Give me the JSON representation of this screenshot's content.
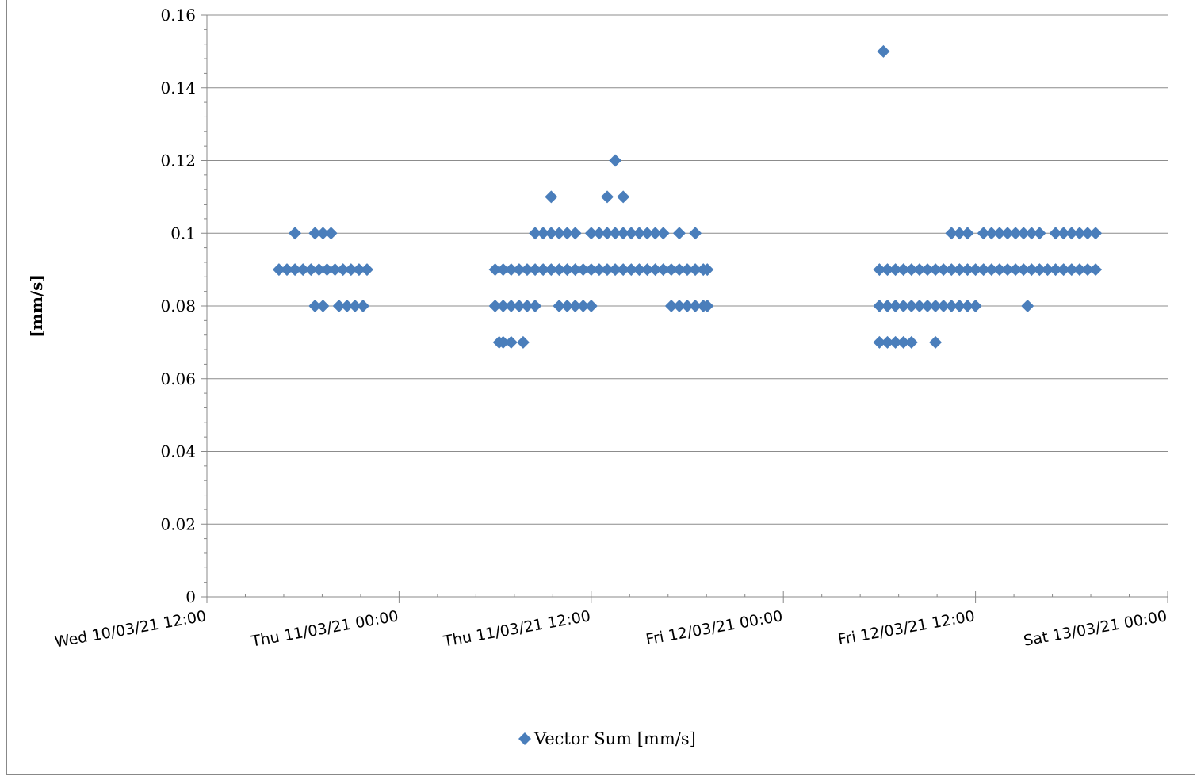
{
  "chart_data": {
    "type": "scatter",
    "title": "",
    "xlabel": "",
    "ylabel": "[mm/s]",
    "ylim": [
      0,
      0.16
    ],
    "yticks": [
      "0",
      "0.02",
      "0.04",
      "0.06",
      "0.08",
      "0.1",
      "0.12",
      "0.14",
      "0.16"
    ],
    "xlim": [
      "2021-03-10 12:00",
      "2021-03-13 00:00"
    ],
    "xticks": [
      "Wed 10/03/21 12:00",
      "Thu 11/03/21 00:00",
      "Thu 11/03/21 12:00",
      "Fri 12/03/21 00:00",
      "Fri 12/03/21 12:00",
      "Sat 13/03/21 00:00"
    ],
    "grid": "horizontal major gridlines",
    "legend_position": "bottom-center",
    "marker": "diamond",
    "color": "#4a7ebb",
    "series": [
      {
        "name": "Vector Sum [mm/s]",
        "points": [
          [
            "2021-03-10 16:30",
            0.09
          ],
          [
            "2021-03-10 17:00",
            0.09
          ],
          [
            "2021-03-10 17:30",
            0.09
          ],
          [
            "2021-03-10 18:00",
            0.09
          ],
          [
            "2021-03-10 18:30",
            0.09
          ],
          [
            "2021-03-10 19:00",
            0.09
          ],
          [
            "2021-03-10 19:30",
            0.09
          ],
          [
            "2021-03-10 20:00",
            0.09
          ],
          [
            "2021-03-10 20:30",
            0.09
          ],
          [
            "2021-03-10 21:00",
            0.09
          ],
          [
            "2021-03-10 21:30",
            0.09
          ],
          [
            "2021-03-10 22:00",
            0.09
          ],
          [
            "2021-03-10 17:30",
            0.1
          ],
          [
            "2021-03-10 18:45",
            0.1
          ],
          [
            "2021-03-10 19:15",
            0.1
          ],
          [
            "2021-03-10 19:45",
            0.1
          ],
          [
            "2021-03-10 18:45",
            0.08
          ],
          [
            "2021-03-10 19:15",
            0.08
          ],
          [
            "2021-03-10 20:15",
            0.08
          ],
          [
            "2021-03-10 20:45",
            0.08
          ],
          [
            "2021-03-10 21:15",
            0.08
          ],
          [
            "2021-03-10 21:45",
            0.08
          ],
          [
            "2021-03-11 06:00",
            0.09
          ],
          [
            "2021-03-11 06:30",
            0.09
          ],
          [
            "2021-03-11 07:00",
            0.09
          ],
          [
            "2021-03-11 07:30",
            0.09
          ],
          [
            "2021-03-11 08:00",
            0.09
          ],
          [
            "2021-03-11 08:30",
            0.09
          ],
          [
            "2021-03-11 09:00",
            0.09
          ],
          [
            "2021-03-11 09:30",
            0.09
          ],
          [
            "2021-03-11 10:00",
            0.09
          ],
          [
            "2021-03-11 10:30",
            0.09
          ],
          [
            "2021-03-11 11:00",
            0.09
          ],
          [
            "2021-03-11 11:30",
            0.09
          ],
          [
            "2021-03-11 12:00",
            0.09
          ],
          [
            "2021-03-11 12:30",
            0.09
          ],
          [
            "2021-03-11 13:00",
            0.09
          ],
          [
            "2021-03-11 13:30",
            0.09
          ],
          [
            "2021-03-11 14:00",
            0.09
          ],
          [
            "2021-03-11 14:30",
            0.09
          ],
          [
            "2021-03-11 15:00",
            0.09
          ],
          [
            "2021-03-11 15:30",
            0.09
          ],
          [
            "2021-03-11 16:00",
            0.09
          ],
          [
            "2021-03-11 16:30",
            0.09
          ],
          [
            "2021-03-11 17:00",
            0.09
          ],
          [
            "2021-03-11 17:30",
            0.09
          ],
          [
            "2021-03-11 18:00",
            0.09
          ],
          [
            "2021-03-11 18:30",
            0.09
          ],
          [
            "2021-03-11 19:00",
            0.09
          ],
          [
            "2021-03-11 19:15",
            0.09
          ],
          [
            "2021-03-11 08:30",
            0.1
          ],
          [
            "2021-03-11 09:00",
            0.1
          ],
          [
            "2021-03-11 09:30",
            0.1
          ],
          [
            "2021-03-11 10:00",
            0.1
          ],
          [
            "2021-03-11 10:30",
            0.1
          ],
          [
            "2021-03-11 11:00",
            0.1
          ],
          [
            "2021-03-11 12:00",
            0.1
          ],
          [
            "2021-03-11 12:30",
            0.1
          ],
          [
            "2021-03-11 13:00",
            0.1
          ],
          [
            "2021-03-11 13:30",
            0.1
          ],
          [
            "2021-03-11 14:00",
            0.1
          ],
          [
            "2021-03-11 14:30",
            0.1
          ],
          [
            "2021-03-11 15:00",
            0.1
          ],
          [
            "2021-03-11 15:30",
            0.1
          ],
          [
            "2021-03-11 16:00",
            0.1
          ],
          [
            "2021-03-11 16:30",
            0.1
          ],
          [
            "2021-03-11 17:30",
            0.1
          ],
          [
            "2021-03-11 18:30",
            0.1
          ],
          [
            "2021-03-11 06:00",
            0.08
          ],
          [
            "2021-03-11 06:30",
            0.08
          ],
          [
            "2021-03-11 07:00",
            0.08
          ],
          [
            "2021-03-11 07:30",
            0.08
          ],
          [
            "2021-03-11 08:00",
            0.08
          ],
          [
            "2021-03-11 08:30",
            0.08
          ],
          [
            "2021-03-11 10:00",
            0.08
          ],
          [
            "2021-03-11 10:30",
            0.08
          ],
          [
            "2021-03-11 11:00",
            0.08
          ],
          [
            "2021-03-11 11:30",
            0.08
          ],
          [
            "2021-03-11 12:00",
            0.08
          ],
          [
            "2021-03-11 17:00",
            0.08
          ],
          [
            "2021-03-11 17:30",
            0.08
          ],
          [
            "2021-03-11 18:00",
            0.08
          ],
          [
            "2021-03-11 18:30",
            0.08
          ],
          [
            "2021-03-11 19:00",
            0.08
          ],
          [
            "2021-03-11 19:15",
            0.08
          ],
          [
            "2021-03-11 06:15",
            0.07
          ],
          [
            "2021-03-11 06:30",
            0.07
          ],
          [
            "2021-03-11 07:00",
            0.07
          ],
          [
            "2021-03-11 07:45",
            0.07
          ],
          [
            "2021-03-11 09:30",
            0.11
          ],
          [
            "2021-03-11 13:00",
            0.11
          ],
          [
            "2021-03-11 13:30",
            0.12
          ],
          [
            "2021-03-11 14:00",
            0.11
          ],
          [
            "2021-03-12 06:00",
            0.09
          ],
          [
            "2021-03-12 06:30",
            0.09
          ],
          [
            "2021-03-12 07:00",
            0.09
          ],
          [
            "2021-03-12 07:30",
            0.09
          ],
          [
            "2021-03-12 08:00",
            0.09
          ],
          [
            "2021-03-12 08:30",
            0.09
          ],
          [
            "2021-03-12 09:00",
            0.09
          ],
          [
            "2021-03-12 09:30",
            0.09
          ],
          [
            "2021-03-12 10:00",
            0.09
          ],
          [
            "2021-03-12 10:30",
            0.09
          ],
          [
            "2021-03-12 11:00",
            0.09
          ],
          [
            "2021-03-12 11:30",
            0.09
          ],
          [
            "2021-03-12 12:00",
            0.09
          ],
          [
            "2021-03-12 12:30",
            0.09
          ],
          [
            "2021-03-12 13:00",
            0.09
          ],
          [
            "2021-03-12 13:30",
            0.09
          ],
          [
            "2021-03-12 14:00",
            0.09
          ],
          [
            "2021-03-12 14:30",
            0.09
          ],
          [
            "2021-03-12 15:00",
            0.09
          ],
          [
            "2021-03-12 15:30",
            0.09
          ],
          [
            "2021-03-12 16:00",
            0.09
          ],
          [
            "2021-03-12 16:30",
            0.09
          ],
          [
            "2021-03-12 17:00",
            0.09
          ],
          [
            "2021-03-12 17:30",
            0.09
          ],
          [
            "2021-03-12 18:00",
            0.09
          ],
          [
            "2021-03-12 18:30",
            0.09
          ],
          [
            "2021-03-12 19:00",
            0.09
          ],
          [
            "2021-03-12 19:30",
            0.09
          ],
          [
            "2021-03-12 10:30",
            0.1
          ],
          [
            "2021-03-12 11:00",
            0.1
          ],
          [
            "2021-03-12 11:30",
            0.1
          ],
          [
            "2021-03-12 12:30",
            0.1
          ],
          [
            "2021-03-12 13:00",
            0.1
          ],
          [
            "2021-03-12 13:30",
            0.1
          ],
          [
            "2021-03-12 14:00",
            0.1
          ],
          [
            "2021-03-12 14:30",
            0.1
          ],
          [
            "2021-03-12 15:00",
            0.1
          ],
          [
            "2021-03-12 15:30",
            0.1
          ],
          [
            "2021-03-12 16:00",
            0.1
          ],
          [
            "2021-03-12 17:00",
            0.1
          ],
          [
            "2021-03-12 17:30",
            0.1
          ],
          [
            "2021-03-12 18:00",
            0.1
          ],
          [
            "2021-03-12 18:30",
            0.1
          ],
          [
            "2021-03-12 19:00",
            0.1
          ],
          [
            "2021-03-12 19:30",
            0.1
          ],
          [
            "2021-03-12 06:00",
            0.08
          ],
          [
            "2021-03-12 06:30",
            0.08
          ],
          [
            "2021-03-12 07:00",
            0.08
          ],
          [
            "2021-03-12 07:30",
            0.08
          ],
          [
            "2021-03-12 08:00",
            0.08
          ],
          [
            "2021-03-12 08:30",
            0.08
          ],
          [
            "2021-03-12 09:00",
            0.08
          ],
          [
            "2021-03-12 09:30",
            0.08
          ],
          [
            "2021-03-12 10:00",
            0.08
          ],
          [
            "2021-03-12 10:30",
            0.08
          ],
          [
            "2021-03-12 11:00",
            0.08
          ],
          [
            "2021-03-12 11:30",
            0.08
          ],
          [
            "2021-03-12 12:00",
            0.08
          ],
          [
            "2021-03-12 15:15",
            0.08
          ],
          [
            "2021-03-12 06:00",
            0.07
          ],
          [
            "2021-03-12 06:30",
            0.07
          ],
          [
            "2021-03-12 07:00",
            0.07
          ],
          [
            "2021-03-12 07:30",
            0.07
          ],
          [
            "2021-03-12 08:00",
            0.07
          ],
          [
            "2021-03-12 09:30",
            0.07
          ],
          [
            "2021-03-12 06:15",
            0.15
          ]
        ]
      }
    ]
  }
}
